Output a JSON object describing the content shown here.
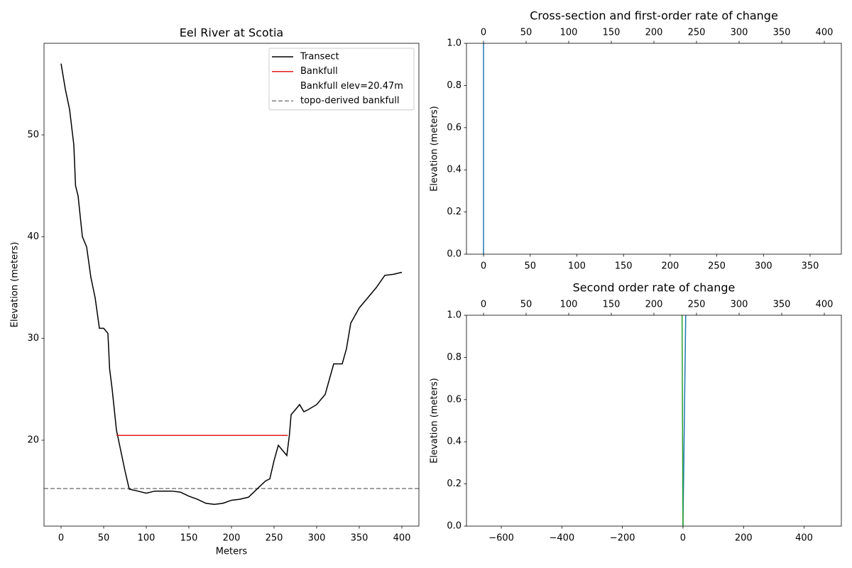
{
  "chart_data": [
    {
      "type": "line",
      "title": "Eel River at Scotia",
      "xlabel": "Meters",
      "ylabel": "Elevation (meters)",
      "xlim": [
        -20,
        420
      ],
      "xticks": [
        0,
        50,
        100,
        150,
        200,
        250,
        300,
        350,
        400
      ],
      "ylim": [
        11.56,
        59
      ],
      "yticks": [
        20,
        30,
        40,
        50
      ],
      "series": [
        {
          "name": "Transect",
          "color": "#000000",
          "x": [
            0,
            5,
            10,
            15,
            17,
            20,
            25,
            30,
            35,
            40,
            45,
            50,
            55,
            57,
            60,
            65,
            70,
            75,
            80,
            90,
            100,
            110,
            120,
            130,
            140,
            150,
            160,
            170,
            180,
            190,
            200,
            210,
            220,
            230,
            240,
            245,
            250,
            255,
            260,
            265,
            268,
            270,
            275,
            280,
            285,
            290,
            300,
            310,
            320,
            330,
            335,
            340,
            350,
            360,
            370,
            380,
            390,
            400
          ],
          "values": [
            57,
            54.5,
            52.5,
            49,
            45,
            44,
            40,
            39,
            36,
            34,
            31,
            31,
            30.5,
            27,
            25,
            21,
            19,
            17,
            15.2,
            15,
            14.8,
            15,
            15,
            15,
            14.9,
            14.5,
            14.2,
            13.8,
            13.7,
            13.8,
            14.1,
            14.2,
            14.4,
            15.2,
            16,
            16.2,
            18,
            19.5,
            19,
            18.5,
            20.5,
            22.5,
            23,
            23.5,
            22.8,
            23,
            23.5,
            24.5,
            27.5,
            27.5,
            29,
            31.5,
            33,
            34,
            35,
            36.2,
            36.3,
            36.5
          ]
        },
        {
          "name": "Bankfull",
          "color": "#e31a1c",
          "x": [
            65,
            266
          ],
          "values": [
            20.47,
            20.47
          ]
        }
      ],
      "legend_note": "Bankfull elev=20.47m",
      "hlines": [
        {
          "name": "topo-derived bankfull",
          "color": "#808080",
          "y": 15.25,
          "dashed": true
        }
      ]
    },
    {
      "type": "line",
      "title": "Cross-section and first-order rate of change",
      "ylabel": "Elevation (meters)",
      "xlim": [
        -18.3,
        383.5
      ],
      "xticks": [
        0,
        50,
        100,
        150,
        200,
        250,
        300,
        350
      ],
      "x2lim": [
        -20,
        420
      ],
      "x2ticks": [
        0,
        50,
        100,
        150,
        200,
        250,
        300,
        350,
        400
      ],
      "ylim": [
        0,
        1
      ],
      "yticks": [
        {
          "value": 0,
          "label": "0.0"
        },
        {
          "value": 0.2,
          "label": "0.2"
        },
        {
          "value": 0.4,
          "label": "0.4"
        },
        {
          "value": 0.6,
          "label": "0.6"
        },
        {
          "value": 0.8,
          "label": "0.8"
        },
        {
          "value": 1,
          "label": "1.0"
        }
      ],
      "series": [
        {
          "color": "#1f77b4",
          "x": [
            0,
            0
          ],
          "values": [
            0,
            1
          ]
        }
      ]
    },
    {
      "type": "line",
      "title": "Second order rate of change",
      "ylabel": "Elevation (meters)",
      "xlim": [
        -715,
        523
      ],
      "xticks": [
        {
          "value": -600,
          "label": "−600"
        },
        {
          "value": -400,
          "label": "−400"
        },
        {
          "value": -200,
          "label": "−200"
        },
        0,
        200,
        400
      ],
      "x2lim": [
        -20,
        420
      ],
      "x2ticks": [
        0,
        50,
        100,
        150,
        200,
        250,
        300,
        350,
        400
      ],
      "ylim": [
        0,
        1
      ],
      "yticks": [
        {
          "value": 0,
          "label": "0.0"
        },
        {
          "value": 0.2,
          "label": "0.2"
        },
        {
          "value": 0.4,
          "label": "0.4"
        },
        {
          "value": 0.6,
          "label": "0.6"
        },
        {
          "value": 0.8,
          "label": "0.8"
        },
        {
          "value": 1,
          "label": "1.0"
        }
      ],
      "series": [
        {
          "color": "#1f77b4",
          "x": [
            0,
            9
          ],
          "values": [
            0,
            1
          ]
        },
        {
          "color": "#2ca02c",
          "x": [
            -3,
            0
          ],
          "values": [
            1,
            0
          ]
        }
      ]
    }
  ]
}
